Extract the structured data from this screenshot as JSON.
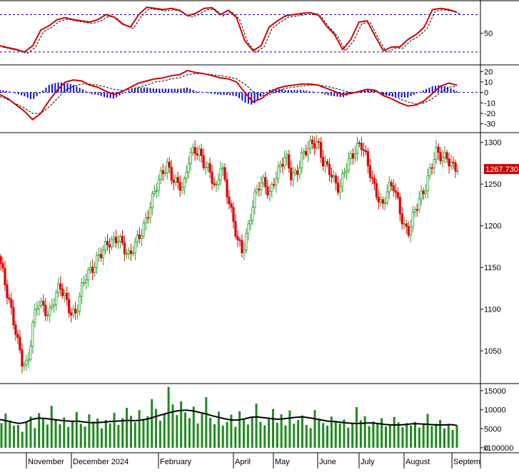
{
  "chart_data": [
    {
      "type": "line",
      "id": "stochastic",
      "ticks": [
        50
      ],
      "ref_lines": [
        20,
        80
      ],
      "ylim": [
        5,
        100
      ],
      "series": [
        {
          "values": [
            30,
            27,
            24,
            20,
            30,
            55,
            62,
            72,
            75,
            72,
            70,
            68,
            72,
            80,
            76,
            65,
            60,
            80,
            92,
            90,
            88,
            90,
            87,
            78,
            82,
            90,
            91,
            80,
            87,
            75,
            38,
            22,
            30,
            60,
            70,
            78,
            80,
            82,
            83,
            80,
            62,
            48,
            24,
            40,
            68,
            70,
            45,
            22,
            28,
            28,
            40,
            48,
            60,
            88,
            90,
            88,
            84
          ]
        }
      ]
    },
    {
      "type": "line",
      "id": "macd",
      "ticks": [
        20,
        10,
        0,
        -10,
        -20,
        -30
      ],
      "ylim": [
        -35,
        25
      ],
      "series": [
        {
          "values": [
            -2,
            -6,
            -12,
            -18,
            -26,
            -20,
            -8,
            2,
            10,
            12,
            11,
            7,
            5,
            1,
            -2,
            1,
            5,
            9,
            11,
            13,
            14,
            16,
            17,
            21,
            19,
            18,
            16,
            14,
            13,
            10,
            0,
            -9,
            -6,
            0,
            4,
            6,
            7,
            8,
            8,
            7,
            4,
            1,
            -2,
            -1,
            1,
            3,
            2,
            -3,
            -6,
            -10,
            -13,
            -12,
            -8,
            -1,
            6,
            9,
            7
          ]
        },
        {
          "values": [
            -4,
            -7,
            -11,
            -15,
            -20,
            -20,
            -14,
            -6,
            2,
            6,
            8,
            8,
            7,
            5,
            3,
            2,
            3,
            5,
            7,
            10,
            11,
            13,
            14,
            17,
            18,
            18,
            17,
            16,
            15,
            13,
            8,
            1,
            -3,
            -2,
            1,
            4,
            5,
            6,
            7,
            7,
            6,
            4,
            2,
            0,
            0,
            1,
            1,
            -1,
            -3,
            -6,
            -9,
            -11,
            -10,
            -6,
            0,
            5,
            6
          ]
        }
      ]
    },
    {
      "type": "candlestick",
      "id": "price",
      "ticks": [
        1300,
        1250,
        1200,
        1150,
        1100,
        1050
      ],
      "ylim": [
        1015,
        1310
      ],
      "last_label": "1267.730",
      "series": [
        {
          "name": "close",
          "values": [
            1155,
            1120,
            1095,
            1070,
            1040,
            1030,
            1080,
            1110,
            1105,
            1095,
            1110,
            1125,
            1115,
            1100,
            1095,
            1120,
            1140,
            1150,
            1165,
            1170,
            1175,
            1180,
            1190,
            1175,
            1160,
            1175,
            1190,
            1210,
            1230,
            1245,
            1260,
            1275,
            1260,
            1250,
            1240,
            1280,
            1295,
            1290,
            1270,
            1260,
            1240,
            1280,
            1245,
            1210,
            1180,
            1170,
            1200,
            1230,
            1245,
            1250,
            1240,
            1260,
            1270,
            1280,
            1260,
            1265,
            1285,
            1290,
            1295,
            1300,
            1280,
            1270,
            1250,
            1240,
            1270,
            1285,
            1290,
            1295,
            1280,
            1260,
            1240,
            1220,
            1240,
            1250,
            1230,
            1200,
            1190,
            1215,
            1235,
            1250,
            1270,
            1285,
            1280,
            1285,
            1275,
            1268
          ]
        }
      ]
    },
    {
      "type": "bar",
      "id": "volume",
      "ticks": [
        15000,
        10000,
        5000,
        0
      ],
      "ylim": [
        0,
        16500
      ],
      "ylabel": "x100000",
      "series": [
        {
          "name": "ma",
          "values": [
            7400,
            7100,
            6700,
            6400,
            6700,
            7500,
            7800,
            7700,
            7500,
            7300,
            7100,
            7000,
            7000,
            6800,
            6600,
            6600,
            6700,
            6900,
            7000,
            7100,
            7200,
            7100,
            7300,
            7600,
            8100,
            8600,
            9100,
            9500,
            9800,
            9900,
            9700,
            9300,
            8900,
            8400,
            8000,
            7600,
            7300,
            7300,
            7600,
            8000,
            8100,
            7900,
            7700,
            7500,
            7600,
            7800,
            8000,
            8100,
            7900,
            7600,
            7300,
            7000,
            6900,
            6700,
            6500,
            6400,
            6400,
            6500,
            6500,
            6300,
            6100,
            6000,
            6000,
            6100,
            6300,
            6300,
            6200,
            6100,
            6000,
            6000,
            6100,
            5900
          ]
        },
        {
          "name": "volume",
          "values": [
            6500,
            9000,
            7200,
            5800,
            6000,
            4200,
            6800,
            8200,
            5200,
            9100,
            7600,
            6100,
            11000,
            7400,
            6200,
            8000,
            5500,
            7100,
            9400,
            6300,
            5600,
            8800,
            6900,
            7700,
            5100,
            7300,
            6400,
            9200,
            6000,
            7800,
            10500,
            8400,
            6700,
            9900,
            7600,
            8300,
            12800,
            10200,
            7100,
            9000,
            16000,
            11400,
            8600,
            12200,
            9300,
            7800,
            10800,
            6400,
            8900,
            13300,
            7900,
            6200,
            9500,
            5800,
            6800,
            8700,
            5500,
            9600,
            7400,
            6100,
            8300,
            11600,
            6800,
            5900,
            7900,
            10200,
            6600,
            8800,
            5900,
            9800,
            6300,
            7300,
            8500,
            6000,
            5200,
            9900,
            7700,
            6500,
            5800,
            8200,
            7100,
            6400,
            7400,
            5300,
            6600,
            10700,
            7200,
            8300,
            5700,
            6900,
            6200,
            7800,
            5600,
            5900,
            8100,
            6700,
            5400,
            6500,
            5900,
            6800,
            5300,
            6100,
            8900,
            5700,
            6300,
            7300,
            5100,
            6100,
            4700,
            5900
          ]
        }
      ]
    }
  ],
  "x_axis": {
    "months": [
      "November",
      "December 2024",
      "February",
      "April",
      "May",
      "June",
      "July",
      "August",
      "Septem"
    ]
  },
  "colors": {
    "stoch_line": "#d40000",
    "macd_line": "#d40000",
    "signal_line": "#000000",
    "hist": "#1010d0",
    "up": "#2aa02a",
    "down": "#e00000",
    "volume": "#1e8a1e",
    "ref": "#0000c8",
    "last_label_bg": "#c80000"
  }
}
